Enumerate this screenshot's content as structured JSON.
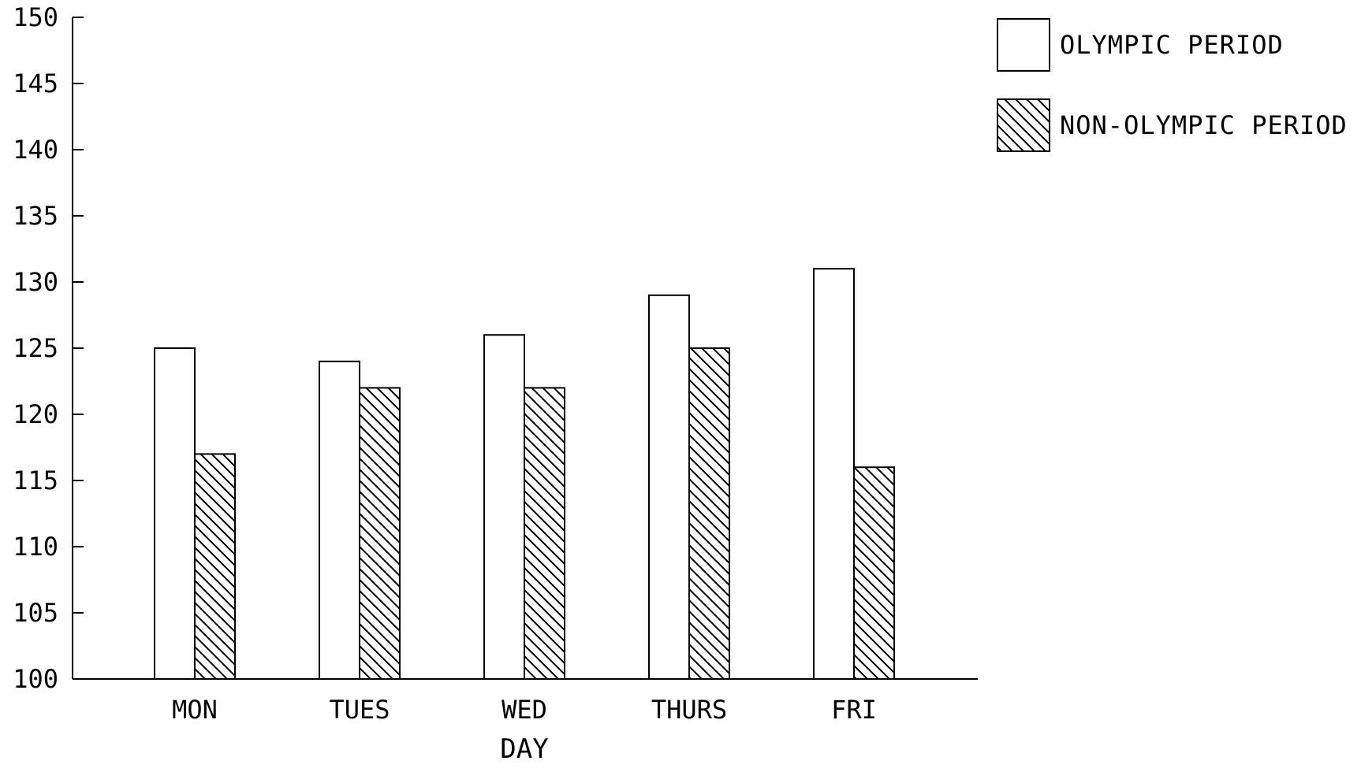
{
  "colors": {
    "ink": "#000000",
    "background": "#ffffff",
    "olympic_fill": "#ffffff",
    "non_olympic_hatch": "#000000"
  },
  "chart_data": {
    "type": "bar",
    "title": "",
    "xlabel": "DAY",
    "ylabel": "",
    "ylim": [
      100,
      150
    ],
    "yticks": [
      100,
      105,
      110,
      115,
      120,
      125,
      130,
      135,
      140,
      145,
      150
    ],
    "categories": [
      "MON",
      "TUES",
      "WED",
      "THURS",
      "FRI"
    ],
    "series": [
      {
        "name": "OLYMPIC PERIOD",
        "pattern": "solid-white",
        "values": [
          125,
          124,
          126,
          129,
          131
        ]
      },
      {
        "name": "NON-OLYMPIC PERIOD",
        "pattern": "diagonal-hatch",
        "values": [
          117,
          122,
          122,
          125,
          116
        ]
      }
    ],
    "grid": false,
    "legend_position": "top-right"
  }
}
